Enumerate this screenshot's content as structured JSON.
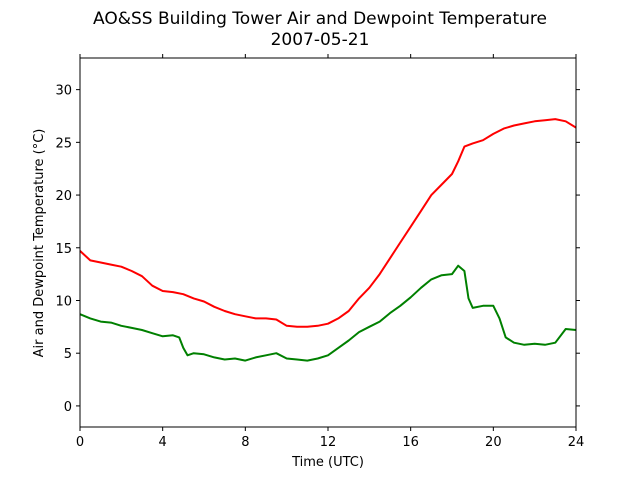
{
  "chart_data": {
    "type": "line",
    "title": "AO&SS Building Tower Air and Dewpoint Temperature",
    "subtitle": "2007-05-21",
    "xlabel": "Time (UTC)",
    "ylabel": "Air and Dewpoint Temperature (°C)",
    "xlim": [
      0,
      24
    ],
    "ylim": [
      -2,
      33
    ],
    "xticks": [
      0,
      4,
      8,
      12,
      16,
      20,
      24
    ],
    "yticks": [
      0,
      5,
      10,
      15,
      20,
      25,
      30
    ],
    "grid": false,
    "legend": "none",
    "series": [
      {
        "color": "#ff0000",
        "x": [
          0,
          0.5,
          1,
          1.5,
          2,
          2.5,
          3,
          3.5,
          4,
          4.5,
          5,
          5.5,
          6,
          6.5,
          7,
          7.5,
          8,
          8.5,
          9,
          9.5,
          10,
          10.5,
          11,
          11.5,
          12,
          12.5,
          13,
          13.5,
          14,
          14.5,
          15,
          15.5,
          16,
          16.5,
          17,
          17.5,
          18,
          18.3,
          18.6,
          19,
          19.5,
          20,
          20.5,
          21,
          21.5,
          22,
          22.5,
          23,
          23.5,
          24
        ],
        "y": [
          14.7,
          13.8,
          13.6,
          13.4,
          13.2,
          12.8,
          12.3,
          11.4,
          10.9,
          10.8,
          10.6,
          10.2,
          9.9,
          9.4,
          9.0,
          8.7,
          8.5,
          8.3,
          8.3,
          8.2,
          7.6,
          7.5,
          7.5,
          7.6,
          7.8,
          8.3,
          9.0,
          10.2,
          11.2,
          12.5,
          14.0,
          15.5,
          17.0,
          18.5,
          20.0,
          21.0,
          22.0,
          23.2,
          24.6,
          24.9,
          25.2,
          25.8,
          26.3,
          26.6,
          26.8,
          27.0,
          27.1,
          27.2,
          27.0,
          26.4
        ]
      },
      {
        "color": "#008000",
        "x": [
          0,
          0.5,
          1,
          1.5,
          2,
          2.5,
          3,
          3.5,
          4,
          4.5,
          4.8,
          5.0,
          5.2,
          5.5,
          6,
          6.5,
          7,
          7.5,
          8,
          8.5,
          9,
          9.5,
          10,
          10.5,
          11,
          11.5,
          12,
          12.5,
          13,
          13.5,
          14,
          14.5,
          15,
          15.5,
          16,
          16.5,
          17,
          17.5,
          18,
          18.3,
          18.6,
          18.8,
          19,
          19.5,
          20,
          20.3,
          20.6,
          21,
          21.5,
          22,
          22.5,
          23,
          23.5,
          24
        ],
        "y": [
          8.7,
          8.3,
          8.0,
          7.9,
          7.6,
          7.4,
          7.2,
          6.9,
          6.6,
          6.7,
          6.5,
          5.5,
          4.8,
          5.0,
          4.9,
          4.6,
          4.4,
          4.5,
          4.3,
          4.6,
          4.8,
          5.0,
          4.5,
          4.4,
          4.3,
          4.5,
          4.8,
          5.5,
          6.2,
          7.0,
          7.5,
          8.0,
          8.8,
          9.5,
          10.3,
          11.2,
          12.0,
          12.4,
          12.5,
          13.3,
          12.8,
          10.2,
          9.3,
          9.5,
          9.5,
          8.3,
          6.5,
          6.0,
          5.8,
          5.9,
          5.8,
          6.0,
          7.3,
          7.2
        ]
      }
    ]
  }
}
